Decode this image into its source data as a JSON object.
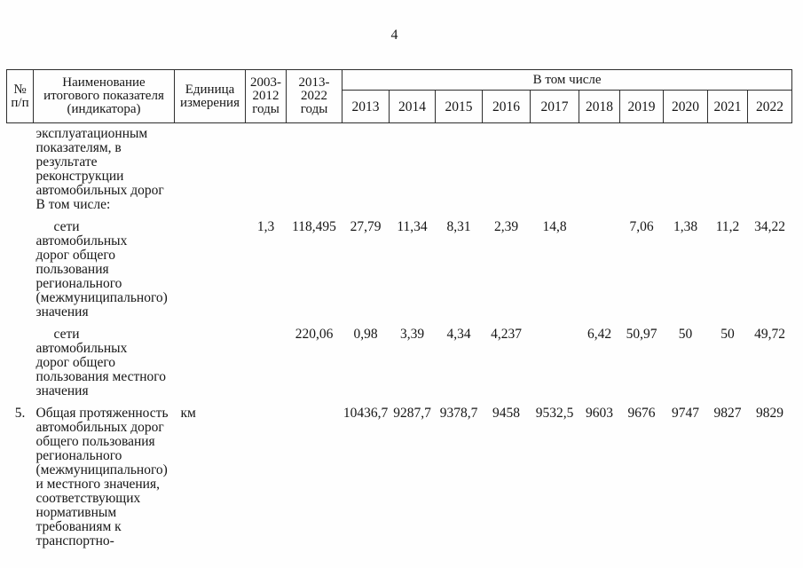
{
  "page": {
    "number": "4"
  },
  "table": {
    "header": {
      "num": "№\nп/п",
      "name": "Наименование\nитогового показателя\n(индикатора)",
      "unit": "Единица\nизмерения",
      "period1": "2003-\n2012\nгоды",
      "period2": "2013-\n2022\nгоды",
      "including": "В том числе",
      "years": [
        "2013",
        "2014",
        "2015",
        "2016",
        "2017",
        "2018",
        "2019",
        "2020",
        "2021",
        "2022"
      ]
    },
    "rows": [
      {
        "num": "",
        "name": "эксплуатационным\nпоказателям, в\nрезультате\nреконструкции\nавтомобильных дорог\nВ том числе:",
        "unit": "",
        "period1": "",
        "period2": "",
        "values": [
          "",
          "",
          "",
          "",
          "",
          "",
          "",
          "",
          "",
          ""
        ]
      },
      {
        "num": "",
        "name": "сети автомобильных\nдорог общего\nпользования\nрегионального\n(межмуниципального)\nзначения",
        "unit": "",
        "period1": "1,3",
        "period2": "118,495",
        "values": [
          "27,79",
          "11,34",
          "8,31",
          "2,39",
          "14,8",
          "",
          "7,06",
          "1,38",
          "11,2",
          "34,22"
        ]
      },
      {
        "num": "",
        "name": "сети автомобильных\nдорог общего\nпользования местного\nзначения",
        "unit": "",
        "period1": "",
        "period2": "220,06",
        "values": [
          "0,98",
          "3,39",
          "4,34",
          "4,237",
          "",
          "6,42",
          "50,97",
          "50",
          "50",
          "49,72"
        ]
      },
      {
        "num": "5.",
        "name": "Общая протяженность\nавтомобильных дорог\nобщего пользования\nрегионального\n(межмуниципального)\nи местного значения,\nсоответствующих\nнормативным\nтребованиям к\nтранспортно-",
        "unit": "км",
        "period1": "",
        "period2": "",
        "values": [
          "10436,7",
          "9287,7",
          "9378,7",
          "9458",
          "9532,5",
          "9603",
          "9676",
          "9747",
          "9827",
          "9829"
        ]
      }
    ]
  }
}
